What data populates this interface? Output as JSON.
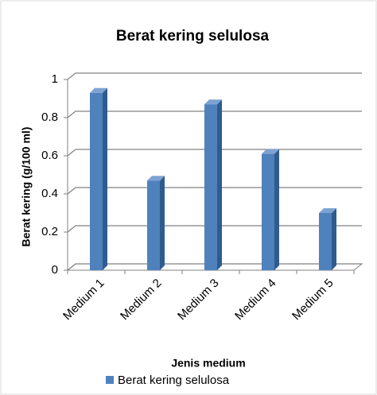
{
  "chart_data": {
    "type": "bar",
    "title": "Berat kering selulosa",
    "x_label": "Jenis medium",
    "y_label": "Berat kering (g/100 ml)",
    "categories": [
      "Medium 1",
      "Medium 2",
      "Medium 3",
      "Medium 4",
      "Medium 5"
    ],
    "series": [
      {
        "name": "Berat kering selulosa",
        "color": "#4f81bd",
        "values": [
          0.93,
          0.47,
          0.87,
          0.61,
          0.3
        ]
      }
    ],
    "ylim": [
      0,
      1
    ],
    "yticks": [
      0,
      0.2,
      0.4,
      0.6,
      0.8,
      1
    ],
    "grid": true,
    "legend": "bottom"
  }
}
